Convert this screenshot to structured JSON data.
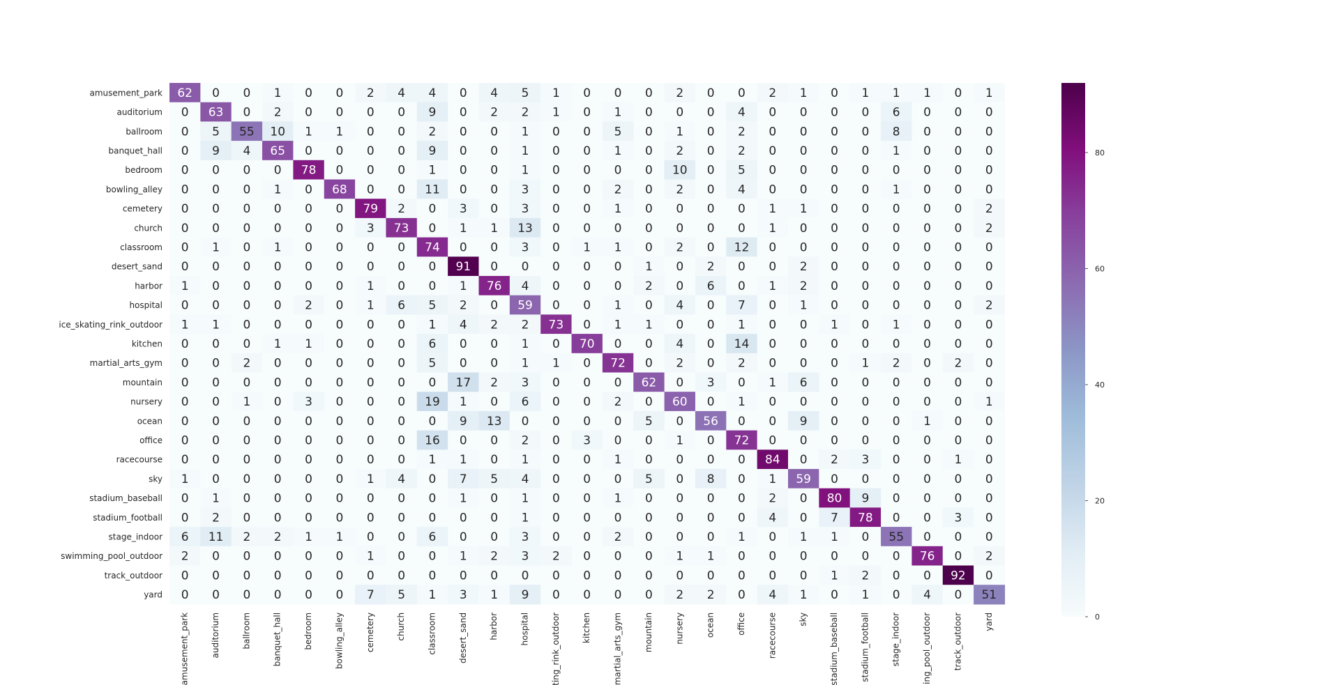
{
  "chart_data": {
    "type": "heatmap",
    "title": "",
    "xlabel": "",
    "ylabel": "",
    "row_labels": [
      "amusement_park",
      "auditorium",
      "ballroom",
      "banquet_hall",
      "bedroom",
      "bowling_alley",
      "cemetery",
      "church",
      "classroom",
      "desert_sand",
      "harbor",
      "hospital",
      "ice_skating_rink_outdoor",
      "kitchen",
      "martial_arts_gym",
      "mountain",
      "nursery",
      "ocean",
      "office",
      "racecourse",
      "sky",
      "stadium_baseball",
      "stadium_football",
      "stage_indoor",
      "swimming_pool_outdoor",
      "track_outdoor",
      "yard"
    ],
    "col_labels": [
      "amusement_park",
      "auditorium",
      "ballroom",
      "banquet_hall",
      "bedroom",
      "bowling_alley",
      "cemetery",
      "church",
      "classroom",
      "desert_sand",
      "harbor",
      "hospital",
      "ice_skating_rink_outdoor",
      "kitchen",
      "martial_arts_gym",
      "mountain",
      "nursery",
      "ocean",
      "office",
      "racecourse",
      "sky",
      "stadium_baseball",
      "stadium_football",
      "stage_indoor",
      "swimming_pool_outdoor",
      "track_outdoor",
      "yard"
    ],
    "values": [
      [
        62,
        0,
        0,
        1,
        0,
        0,
        2,
        4,
        4,
        0,
        4,
        5,
        1,
        0,
        0,
        0,
        2,
        0,
        0,
        2,
        1,
        0,
        1,
        1,
        1,
        0,
        1
      ],
      [
        0,
        63,
        0,
        2,
        0,
        0,
        0,
        0,
        9,
        0,
        2,
        2,
        1,
        0,
        1,
        0,
        0,
        0,
        4,
        0,
        0,
        0,
        0,
        6,
        0,
        0,
        0
      ],
      [
        0,
        5,
        55,
        10,
        1,
        1,
        0,
        0,
        2,
        0,
        0,
        1,
        0,
        0,
        5,
        0,
        1,
        0,
        2,
        0,
        0,
        0,
        0,
        8,
        0,
        0,
        0
      ],
      [
        0,
        9,
        4,
        65,
        0,
        0,
        0,
        0,
        9,
        0,
        0,
        1,
        0,
        0,
        1,
        0,
        2,
        0,
        2,
        0,
        0,
        0,
        0,
        1,
        0,
        0,
        0
      ],
      [
        0,
        0,
        0,
        0,
        78,
        0,
        0,
        0,
        1,
        0,
        0,
        1,
        0,
        0,
        0,
        0,
        10,
        0,
        5,
        0,
        0,
        0,
        0,
        0,
        0,
        0,
        0
      ],
      [
        0,
        0,
        0,
        1,
        0,
        68,
        0,
        0,
        11,
        0,
        0,
        3,
        0,
        0,
        2,
        0,
        2,
        0,
        4,
        0,
        0,
        0,
        0,
        1,
        0,
        0,
        0
      ],
      [
        0,
        0,
        0,
        0,
        0,
        0,
        79,
        2,
        0,
        3,
        0,
        3,
        0,
        0,
        1,
        0,
        0,
        0,
        0,
        1,
        1,
        0,
        0,
        0,
        0,
        0,
        2
      ],
      [
        0,
        0,
        0,
        0,
        0,
        0,
        3,
        73,
        0,
        1,
        1,
        13,
        0,
        0,
        0,
        0,
        0,
        0,
        0,
        1,
        0,
        0,
        0,
        0,
        0,
        0,
        2
      ],
      [
        0,
        1,
        0,
        1,
        0,
        0,
        0,
        0,
        74,
        0,
        0,
        3,
        0,
        1,
        1,
        0,
        2,
        0,
        12,
        0,
        0,
        0,
        0,
        0,
        0,
        0,
        0
      ],
      [
        0,
        0,
        0,
        0,
        0,
        0,
        0,
        0,
        0,
        91,
        0,
        0,
        0,
        0,
        0,
        1,
        0,
        2,
        0,
        0,
        2,
        0,
        0,
        0,
        0,
        0,
        0
      ],
      [
        1,
        0,
        0,
        0,
        0,
        0,
        1,
        0,
        0,
        1,
        76,
        4,
        0,
        0,
        0,
        2,
        0,
        6,
        0,
        1,
        2,
        0,
        0,
        0,
        0,
        0,
        0
      ],
      [
        0,
        0,
        0,
        0,
        2,
        0,
        1,
        6,
        5,
        2,
        0,
        59,
        0,
        0,
        1,
        0,
        4,
        0,
        7,
        0,
        1,
        0,
        0,
        0,
        0,
        0,
        2
      ],
      [
        1,
        1,
        0,
        0,
        0,
        0,
        0,
        0,
        1,
        4,
        2,
        2,
        73,
        0,
        1,
        1,
        0,
        0,
        1,
        0,
        0,
        1,
        0,
        1,
        0,
        0,
        0
      ],
      [
        0,
        0,
        0,
        1,
        1,
        0,
        0,
        0,
        6,
        0,
        0,
        1,
        0,
        70,
        0,
        0,
        4,
        0,
        14,
        0,
        0,
        0,
        0,
        0,
        0,
        0,
        0
      ],
      [
        0,
        0,
        2,
        0,
        0,
        0,
        0,
        0,
        5,
        0,
        0,
        1,
        1,
        0,
        72,
        0,
        2,
        0,
        2,
        0,
        0,
        0,
        1,
        2,
        0,
        2,
        0
      ],
      [
        0,
        0,
        0,
        0,
        0,
        0,
        0,
        0,
        0,
        17,
        2,
        3,
        0,
        0,
        0,
        62,
        0,
        3,
        0,
        1,
        6,
        0,
        0,
        0,
        0,
        0,
        0
      ],
      [
        0,
        0,
        1,
        0,
        3,
        0,
        0,
        0,
        19,
        1,
        0,
        6,
        0,
        0,
        2,
        0,
        60,
        0,
        1,
        0,
        0,
        0,
        0,
        0,
        0,
        0,
        1
      ],
      [
        0,
        0,
        0,
        0,
        0,
        0,
        0,
        0,
        0,
        9,
        13,
        0,
        0,
        0,
        0,
        5,
        0,
        56,
        0,
        0,
        9,
        0,
        0,
        0,
        1,
        0,
        0
      ],
      [
        0,
        0,
        0,
        0,
        0,
        0,
        0,
        0,
        16,
        0,
        0,
        2,
        0,
        3,
        0,
        0,
        1,
        0,
        72,
        0,
        0,
        0,
        0,
        0,
        0,
        0,
        0
      ],
      [
        0,
        0,
        0,
        0,
        0,
        0,
        0,
        0,
        1,
        1,
        0,
        1,
        0,
        0,
        1,
        0,
        0,
        0,
        0,
        84,
        0,
        2,
        3,
        0,
        0,
        1,
        0
      ],
      [
        1,
        0,
        0,
        0,
        0,
        0,
        1,
        4,
        0,
        7,
        5,
        4,
        0,
        0,
        0,
        5,
        0,
        8,
        0,
        1,
        59,
        0,
        0,
        0,
        0,
        0,
        0
      ],
      [
        0,
        1,
        0,
        0,
        0,
        0,
        0,
        0,
        0,
        1,
        0,
        1,
        0,
        0,
        1,
        0,
        0,
        0,
        0,
        2,
        0,
        80,
        9,
        0,
        0,
        0,
        0
      ],
      [
        0,
        2,
        0,
        0,
        0,
        0,
        0,
        0,
        0,
        0,
        0,
        1,
        0,
        0,
        0,
        0,
        0,
        0,
        0,
        4,
        0,
        7,
        78,
        0,
        0,
        3,
        0
      ],
      [
        6,
        11,
        2,
        2,
        1,
        1,
        0,
        0,
        6,
        0,
        0,
        3,
        0,
        0,
        2,
        0,
        0,
        0,
        1,
        0,
        1,
        1,
        0,
        55,
        0,
        0,
        0
      ],
      [
        2,
        0,
        0,
        0,
        0,
        0,
        1,
        0,
        0,
        1,
        2,
        3,
        2,
        0,
        0,
        0,
        1,
        1,
        0,
        0,
        0,
        0,
        0,
        0,
        76,
        0,
        2
      ],
      [
        0,
        0,
        0,
        0,
        0,
        0,
        0,
        0,
        0,
        0,
        0,
        0,
        0,
        0,
        0,
        0,
        0,
        0,
        0,
        0,
        0,
        1,
        2,
        0,
        0,
        92,
        0
      ],
      [
        0,
        0,
        0,
        0,
        0,
        0,
        7,
        5,
        1,
        3,
        1,
        9,
        0,
        0,
        0,
        0,
        2,
        2,
        0,
        4,
        1,
        0,
        1,
        0,
        4,
        0,
        51
      ]
    ],
    "value_range": [
      0,
      92
    ],
    "colormap": "BuPu",
    "colorbar": {
      "ticks": [
        0,
        20,
        40,
        60,
        80
      ],
      "labels": [
        "0",
        "20",
        "40",
        "60",
        "80"
      ]
    },
    "grid": false
  }
}
